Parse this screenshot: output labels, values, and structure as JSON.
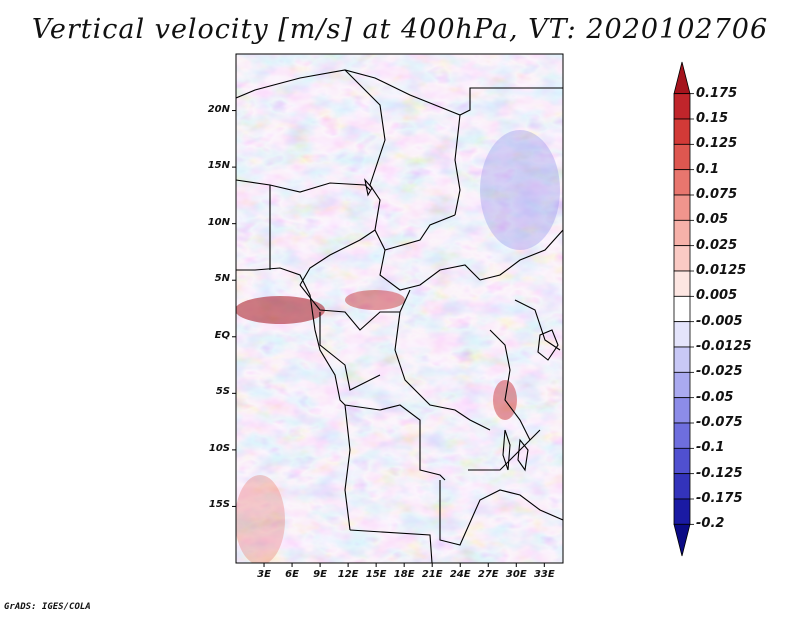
{
  "title": "Vertical velocity [m/s] at 400hPa, VT: 2020102706",
  "credit": "GrADS: IGES/COLA",
  "map": {
    "lon_range": [
      0,
      35
    ],
    "lat_range": [
      -20,
      25
    ],
    "lat_ticks": [
      "20N",
      "15N",
      "10N",
      "5N",
      "EQ",
      "5S",
      "10S",
      "15S"
    ],
    "lon_ticks": [
      "3E",
      "6E",
      "9E",
      "12E",
      "15E",
      "18E",
      "21E",
      "24E",
      "27E",
      "30E",
      "33E"
    ]
  },
  "colorbar": {
    "labels": [
      "0.175",
      "0.15",
      "0.125",
      "0.1",
      "0.075",
      "0.05",
      "0.025",
      "0.0125",
      "0.005",
      "-0.005",
      "-0.0125",
      "-0.025",
      "-0.05",
      "-0.075",
      "-0.1",
      "-0.125",
      "-0.175",
      "-0.2"
    ],
    "colors": [
      "#a5141d",
      "#c0252b",
      "#d23a37",
      "#de5750",
      "#e8766e",
      "#f0958d",
      "#f6b1a9",
      "#facac4",
      "#fde6e2",
      "#ffffff",
      "#e4e4fb",
      "#c8c8f6",
      "#aaaaf0",
      "#8c8ce8",
      "#6e6ede",
      "#5050d0",
      "#3333bb",
      "#1a1aa3",
      "#0b0b85"
    ]
  }
}
